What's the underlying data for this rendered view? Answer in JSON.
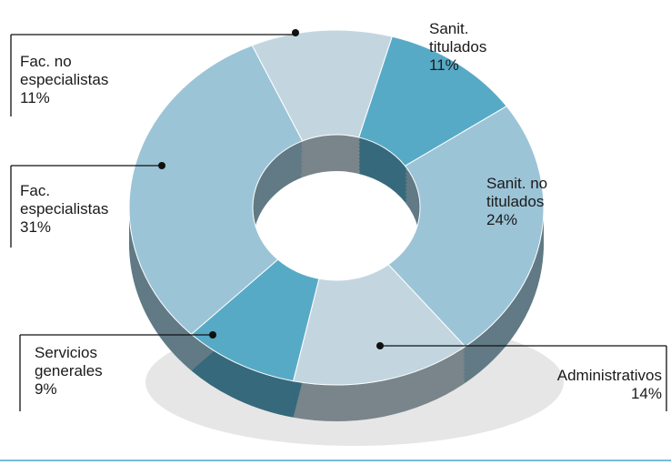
{
  "chart_data": {
    "type": "donut",
    "categories": [
      "Fac. no especialistas",
      "Sanit. titulados",
      "Sanit. no titulados",
      "Administrativos",
      "Servicios generales",
      "Fac. especialistas"
    ],
    "values": [
      11,
      11,
      24,
      14,
      9,
      31
    ],
    "value_labels": [
      "11%",
      "11%",
      "24%",
      "14%",
      "9%",
      "31%"
    ],
    "colors": [
      "#c3d6e0",
      "#57aac6",
      "#9cc4d7",
      "#c3d6e0",
      "#57aac6",
      "#9cc4d7"
    ]
  }
}
